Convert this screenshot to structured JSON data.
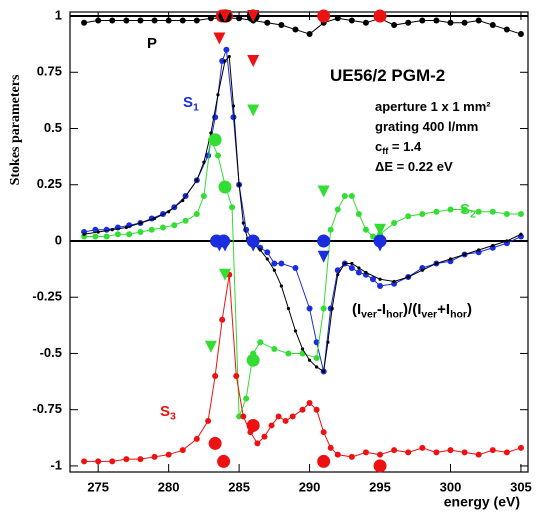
{
  "chart_data": {
    "type": "scatter",
    "xlabel": "energy (eV)",
    "ylabel": "Stokes parameters",
    "xlim": [
      273,
      305.5
    ],
    "ylim": [
      -1.027,
      1.018
    ],
    "xticks": [
      275,
      280,
      285,
      290,
      295,
      300,
      305
    ],
    "yticks": [
      -1,
      -0.75,
      -0.5,
      -0.25,
      0,
      0.25,
      0.5,
      0.75,
      1
    ],
    "hlines": [
      0,
      1
    ],
    "annotations": [
      {
        "segments": [
          "P"
        ],
        "color": "#000000"
      },
      {
        "segments": [
          "UE56/2 PGM-2"
        ],
        "color": "#000000"
      },
      {
        "segments": [
          "aperture 1 x 1 mm²"
        ],
        "color": "#000000"
      },
      {
        "segments": [
          "grating 400 l/mm"
        ],
        "color": "#000000"
      },
      {
        "segments": [
          "c",
          "ff",
          " = 1.4"
        ],
        "color": "#000000"
      },
      {
        "segments": [
          "ΔE = 0.22 eV"
        ],
        "color": "#000000"
      },
      {
        "segments": [
          "S",
          "1"
        ],
        "color": "#1a2ee0"
      },
      {
        "segments": [
          "S",
          "2"
        ],
        "color": "#33dd33"
      },
      {
        "segments": [
          "(I",
          "ver",
          "-I",
          "hor",
          ")/(I",
          "ver",
          "+I",
          "hor",
          ")"
        ],
        "color": "#000000"
      },
      {
        "segments": [
          "S",
          "3"
        ],
        "color": "#ee1111"
      }
    ],
    "series": [
      {
        "color": "#000000",
        "marker": "dot",
        "line": true,
        "x": [
          274,
          275,
          276,
          277,
          278,
          279,
          280,
          281,
          282,
          283,
          284,
          285,
          286,
          287,
          288,
          289,
          290,
          291,
          292,
          293,
          294,
          295,
          296,
          297,
          298,
          299,
          300,
          301,
          302,
          303,
          304,
          305
        ],
        "values": [
          0.97,
          0.98,
          0.98,
          0.98,
          0.98,
          0.98,
          0.98,
          0.98,
          0.98,
          0.99,
          0.99,
          0.99,
          0.98,
          0.97,
          0.96,
          0.94,
          0.92,
          0.97,
          0.99,
          0.98,
          0.97,
          0.99,
          0.96,
          0.97,
          0.98,
          0.98,
          0.97,
          0.97,
          0.98,
          0.96,
          0.94,
          0.92
        ]
      },
      {
        "color": "#1a2ee0",
        "marker": "dot",
        "line": true,
        "x": [
          274,
          274.8,
          275.6,
          276.4,
          277.2,
          278,
          278.8,
          279.6,
          280.4,
          281.2,
          282,
          282.8,
          283.3,
          283.8,
          284.1,
          284.6,
          285,
          285.5,
          286,
          286.5,
          287,
          287.5,
          288,
          289,
          290,
          290.5,
          291,
          291.5,
          292,
          292.5,
          293,
          293.5,
          294,
          294.5,
          295,
          296,
          297,
          298,
          299,
          300,
          301,
          302,
          303,
          304,
          305
        ],
        "values": [
          0.04,
          0.05,
          0.05,
          0.06,
          0.07,
          0.08,
          0.1,
          0.12,
          0.15,
          0.2,
          0.27,
          0.38,
          0.55,
          0.8,
          0.85,
          0.55,
          0.25,
          0.05,
          0,
          -0.03,
          -0.05,
          -0.1,
          -0.1,
          -0.12,
          -0.3,
          -0.45,
          -0.58,
          -0.3,
          -0.13,
          -0.1,
          -0.12,
          -0.14,
          -0.15,
          -0.17,
          -0.2,
          -0.19,
          -0.16,
          -0.12,
          -0.1,
          -0.09,
          -0.06,
          -0.05,
          -0.03,
          -0.01,
          0.02
        ]
      },
      {
        "color": "#33dd33",
        "marker": "dot",
        "line": true,
        "x": [
          274,
          274.8,
          275.6,
          276.4,
          277.2,
          278,
          278.8,
          279.6,
          280.4,
          281.2,
          282,
          282.5,
          283,
          283.5,
          284,
          284.5,
          285,
          285.5,
          286,
          286.5,
          287.5,
          288.5,
          289.5,
          290.5,
          291,
          291.5,
          292,
          292.5,
          293,
          293.5,
          294,
          294.5,
          295,
          296,
          297,
          298,
          299,
          300,
          301,
          302,
          303,
          304,
          305
        ],
        "values": [
          0.02,
          0.02,
          0.02,
          0.03,
          0.03,
          0.04,
          0.05,
          0.06,
          0.07,
          0.09,
          0.12,
          0.2,
          0.45,
          0.38,
          0.25,
          0.15,
          -0.78,
          -0.7,
          -0.5,
          -0.45,
          -0.48,
          -0.5,
          -0.5,
          -0.52,
          -0.3,
          0.05,
          0.14,
          0.2,
          0.2,
          0.12,
          0.05,
          0.02,
          0.03,
          0.08,
          0.11,
          0.12,
          0.13,
          0.14,
          0.14,
          0.13,
          0.13,
          0.12,
          0.12
        ]
      },
      {
        "color": "#ee1111",
        "marker": "dot",
        "line": true,
        "x": [
          274,
          275,
          276,
          277,
          278,
          279,
          280,
          281,
          282,
          282.8,
          283.3,
          283.8,
          284.3,
          284.8,
          285.3,
          285.8,
          286.3,
          286.8,
          287.3,
          287.8,
          288.3,
          288.8,
          289.5,
          290,
          290.5,
          291,
          291.5,
          292,
          293,
          294,
          295,
          296,
          297,
          298,
          299,
          300,
          301,
          302,
          303,
          304,
          305
        ],
        "values": [
          -0.98,
          -0.98,
          -0.98,
          -0.97,
          -0.97,
          -0.96,
          -0.95,
          -0.93,
          -0.88,
          -0.8,
          -0.6,
          -0.35,
          -0.15,
          -0.6,
          -0.78,
          -0.85,
          -0.9,
          -0.87,
          -0.82,
          -0.78,
          -0.8,
          -0.78,
          -0.75,
          -0.72,
          -0.75,
          -0.85,
          -0.92,
          -0.95,
          -0.96,
          -0.94,
          -0.95,
          -0.93,
          -0.94,
          -0.92,
          -0.94,
          -0.93,
          -0.94,
          -0.95,
          -0.93,
          -0.94,
          -0.92
        ]
      },
      {
        "color": "#000000",
        "marker": "small",
        "line": true,
        "x": [
          274,
          275,
          276,
          277,
          278,
          279,
          280,
          281,
          282,
          282.5,
          283,
          283.5,
          284,
          284.3,
          284.6,
          285,
          285.3,
          285.6,
          286,
          286.5,
          287,
          287.5,
          288,
          288.5,
          289,
          289.5,
          290,
          290.5,
          291,
          291.3,
          291.6,
          292,
          292.5,
          293,
          293.5,
          294,
          295,
          296,
          297,
          298,
          299,
          300,
          301,
          302,
          303,
          304,
          305
        ],
        "values": [
          0.03,
          0.04,
          0.05,
          0.06,
          0.08,
          0.1,
          0.13,
          0.18,
          0.27,
          0.35,
          0.48,
          0.65,
          0.8,
          0.82,
          0.6,
          0.25,
          0.08,
          0.01,
          -0.01,
          -0.04,
          -0.08,
          -0.13,
          -0.2,
          -0.3,
          -0.4,
          -0.48,
          -0.53,
          -0.56,
          -0.58,
          -0.45,
          -0.3,
          -0.15,
          -0.1,
          -0.1,
          -0.12,
          -0.14,
          -0.17,
          -0.18,
          -0.16,
          -0.13,
          -0.1,
          -0.08,
          -0.06,
          -0.04,
          -0.02,
          0,
          0.03
        ]
      },
      {
        "color": "#ee1111",
        "marker": "circle",
        "line": false,
        "x": [
          283.8,
          284.1,
          291,
          295,
          283.3,
          283.9,
          286,
          291,
          295
        ],
        "values": [
          1,
          1,
          1,
          1,
          -0.9,
          -0.98,
          -0.82,
          -0.98,
          -1
        ]
      },
      {
        "color": "#000000",
        "marker": "circle",
        "line": false,
        "x": [
          284,
          286
        ],
        "values": [
          1,
          1
        ]
      },
      {
        "color": "#ee1111",
        "marker": "triangle",
        "line": false,
        "x": [
          283.6,
          284,
          286,
          286
        ],
        "values": [
          0.9,
          1,
          0.8,
          1
        ]
      },
      {
        "color": "#1a2ee0",
        "marker": "circle",
        "line": false,
        "x": [
          283.4,
          283.9,
          286,
          291,
          295
        ],
        "values": [
          0,
          0,
          0,
          0,
          0
        ]
      },
      {
        "color": "#1a2ee0",
        "marker": "triangle",
        "line": false,
        "x": [
          283.6,
          284,
          286,
          291,
          295
        ],
        "values": [
          -0.02,
          -0.02,
          -0.02,
          -0.07,
          -0.02
        ]
      },
      {
        "color": "#33dd33",
        "marker": "circle",
        "line": false,
        "x": [
          283.3,
          284,
          286
        ],
        "values": [
          0.45,
          0.24,
          -0.53
        ]
      },
      {
        "color": "#33dd33",
        "marker": "triangle",
        "line": false,
        "x": [
          286,
          291,
          295,
          284,
          283
        ],
        "values": [
          0.58,
          0.22,
          0.05,
          -0.15,
          -0.47
        ]
      }
    ]
  }
}
